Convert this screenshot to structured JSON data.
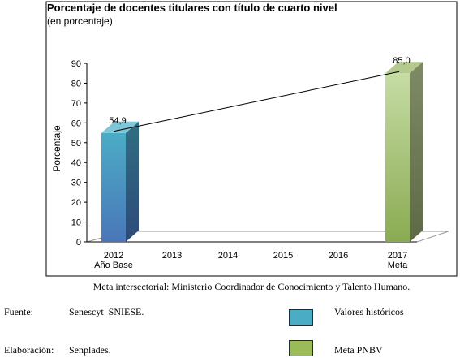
{
  "chart_data": {
    "type": "bar",
    "title": "Porcentaje de docentes titulares con título de cuarto nivel",
    "subtitle": "(en porcentaje)",
    "ylabel": "Porcentaje",
    "ylim": [
      0,
      90
    ],
    "yticks": [
      0,
      10,
      20,
      30,
      40,
      50,
      60,
      70,
      80,
      90
    ],
    "categories": [
      {
        "year": "2012",
        "sub": "Año Base"
      },
      {
        "year": "2013",
        "sub": ""
      },
      {
        "year": "2014",
        "sub": ""
      },
      {
        "year": "2015",
        "sub": ""
      },
      {
        "year": "2016",
        "sub": ""
      },
      {
        "year": "2017",
        "sub": "Meta"
      }
    ],
    "series": [
      {
        "name": "Valores históricos",
        "category": "2012",
        "value": 54.9,
        "label": "54,9",
        "color": "#4bacc6"
      },
      {
        "name": "Meta PNBV",
        "category": "2017",
        "value": 85.0,
        "label": "85,0",
        "color": "#9bbb59"
      }
    ],
    "trend_line": {
      "from": "2012",
      "to": "2017"
    },
    "grid": false,
    "legend_position": "bottom-right"
  },
  "note": "Meta intersectorial: Ministerio Coordinador de Conocimiento y Talento Humano.",
  "footer": {
    "source_label": "Fuente:",
    "source_value": "Senescyt–SNIESE.",
    "prepared_label": "Elaboración:",
    "prepared_value": "Senplades."
  },
  "legend": [
    {
      "label": "Valores históricos",
      "color": "#4bacc6"
    },
    {
      "label": "Meta PNBV",
      "color": "#9bbb59"
    }
  ]
}
